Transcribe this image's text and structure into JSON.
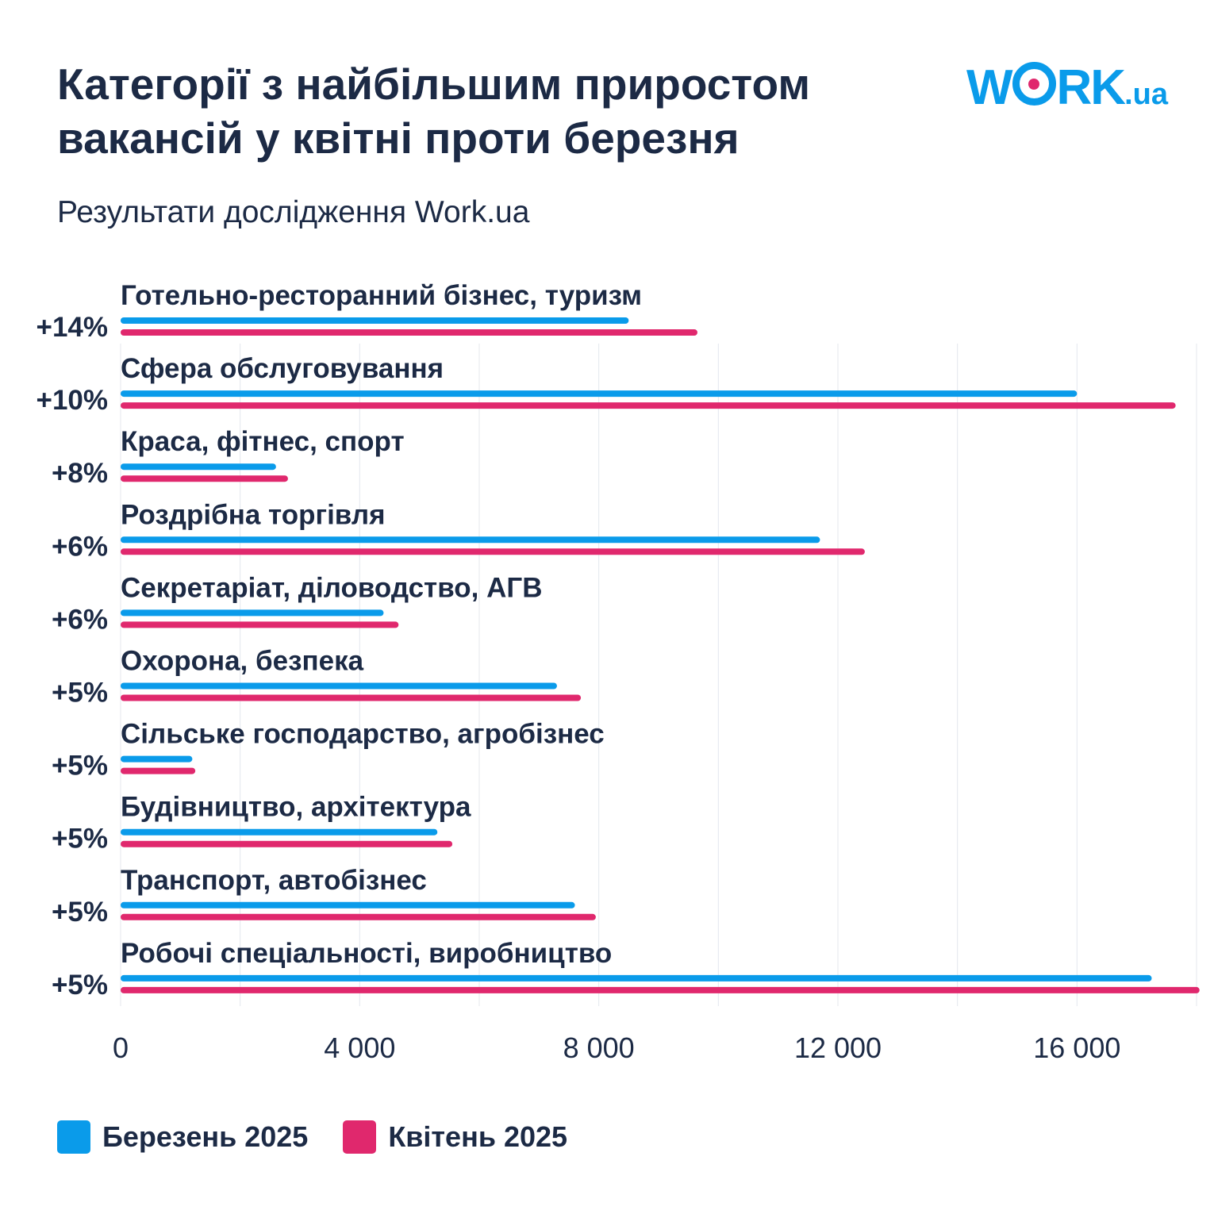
{
  "header": {
    "title_line1": "Категорії з найбільшим приростом",
    "title_line2": "вакансій у квітні проти березня",
    "subtitle": "Результати дослідження Work.ua"
  },
  "logo": {
    "part1": "W",
    "part2": "RK",
    "suffix": ".ua"
  },
  "colors": {
    "march": "#0a9bea",
    "april": "#e0286d",
    "text": "#1c2a45",
    "grid": "#e4e7ee"
  },
  "chart_data": {
    "type": "bar",
    "orientation": "horizontal",
    "categories": [
      "Готельно-ресторанний бізнес, туризм",
      "Сфера обслуговування",
      "Краса, фітнес, спорт",
      "Роздрібна торгівля",
      "Секретаріат, діловодство, АГВ",
      "Охорона, безпека",
      "Сільське господарство, агробізнес",
      "Будівництво, архітектура",
      "Транспорт, автобізнес",
      "Робочі спеціальності, виробництво"
    ],
    "growth_labels": [
      "+14%",
      "+10%",
      "+8%",
      "+6%",
      "+6%",
      "+5%",
      "+5%",
      "+5%",
      "+5%",
      "+5%"
    ],
    "series": [
      {
        "name": "Березень 2025",
        "values": [
          8500,
          16000,
          2600,
          11700,
          4400,
          7300,
          1200,
          5300,
          7600,
          17250
        ]
      },
      {
        "name": "Квітень 2025",
        "values": [
          9650,
          17650,
          2800,
          12450,
          4650,
          7700,
          1250,
          5550,
          7950,
          18050
        ]
      }
    ],
    "xlim": [
      0,
      18000
    ],
    "xticks": [
      0,
      4000,
      8000,
      12000,
      16000
    ],
    "xtick_labels": [
      "0",
      "4 000",
      "8 000",
      "12 000",
      "16 000"
    ],
    "grid": true,
    "legend_position": "bottom-left"
  }
}
